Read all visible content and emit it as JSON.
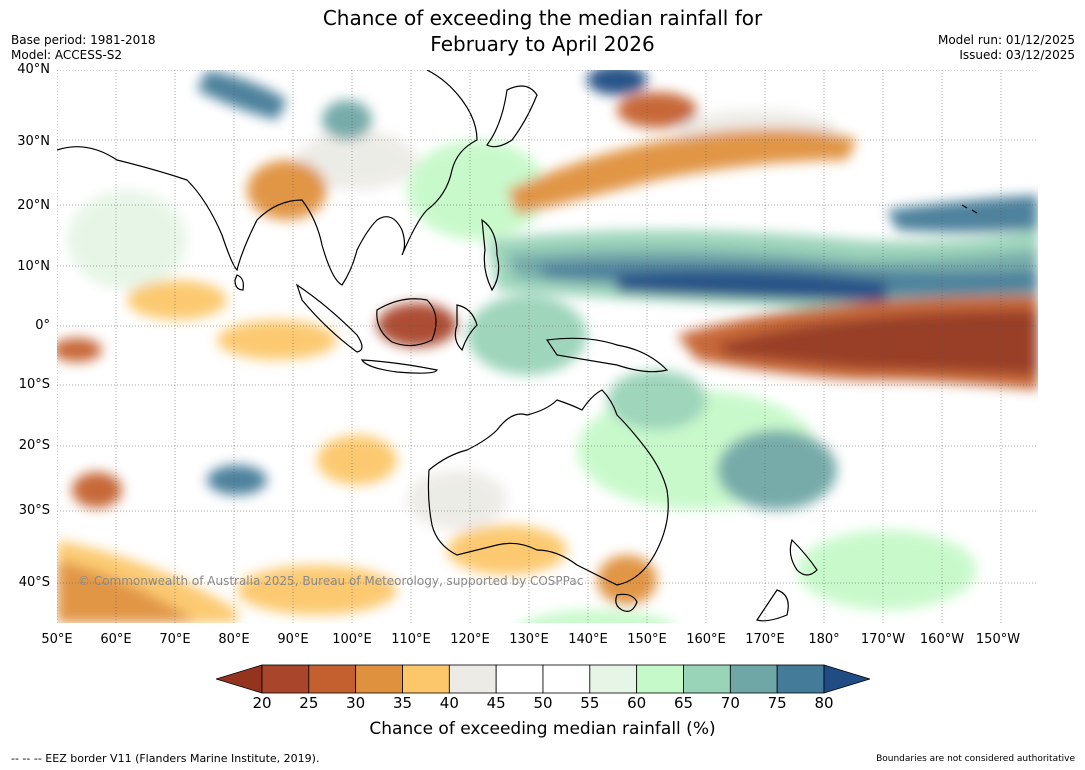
{
  "title": {
    "line1": "Chance of exceeding the median rainfall for",
    "line2": "February to April 2026"
  },
  "meta": {
    "base_period": "Base period: 1981-2018",
    "model": "Model: ACCESS-S2",
    "model_run": "Model run: 01/12/2025",
    "issued": "Issued: 03/12/2025"
  },
  "axes": {
    "lat_labels": [
      "40°N",
      "30°N",
      "20°N",
      "10°N",
      "0°",
      "10°S",
      "20°S",
      "30°S",
      "40°S"
    ],
    "lon_labels": [
      "50°E",
      "60°E",
      "70°E",
      "80°E",
      "90°E",
      "100°E",
      "110°E",
      "120°E",
      "130°E",
      "140°E",
      "150°E",
      "160°E",
      "170°E",
      "180°",
      "170°W",
      "160°W",
      "150°W"
    ]
  },
  "map": {
    "ocean_color": "#ffffff",
    "land_outline_color": "#000000"
  },
  "copyright": "© Commonwealth of Australia 2025, Bureau of Meteorology, supported by COSPPac",
  "colorbar": {
    "ticks": [
      "20",
      "25",
      "30",
      "35",
      "40",
      "45",
      "50",
      "55",
      "60",
      "65",
      "70",
      "75",
      "80"
    ],
    "colors": [
      "#a9452a",
      "#c4602f",
      "#e0913e",
      "#fcc76b",
      "#ecebe6",
      "#ffffff",
      "#ffffff",
      "#e6f5e6",
      "#c6f9c9",
      "#99d3b8",
      "#6fa7a6",
      "#447b98"
    ],
    "low_extend_color": "#94341f",
    "high_extend_color": "#1f4c82",
    "label": "Chance of exceeding median rainfall (%)"
  },
  "footer": {
    "eez_note": "--  --  -- EEZ border V11 (Flanders Marine Institute, 2019).",
    "boundary_note": "Boundaries are not considered authoritative"
  }
}
